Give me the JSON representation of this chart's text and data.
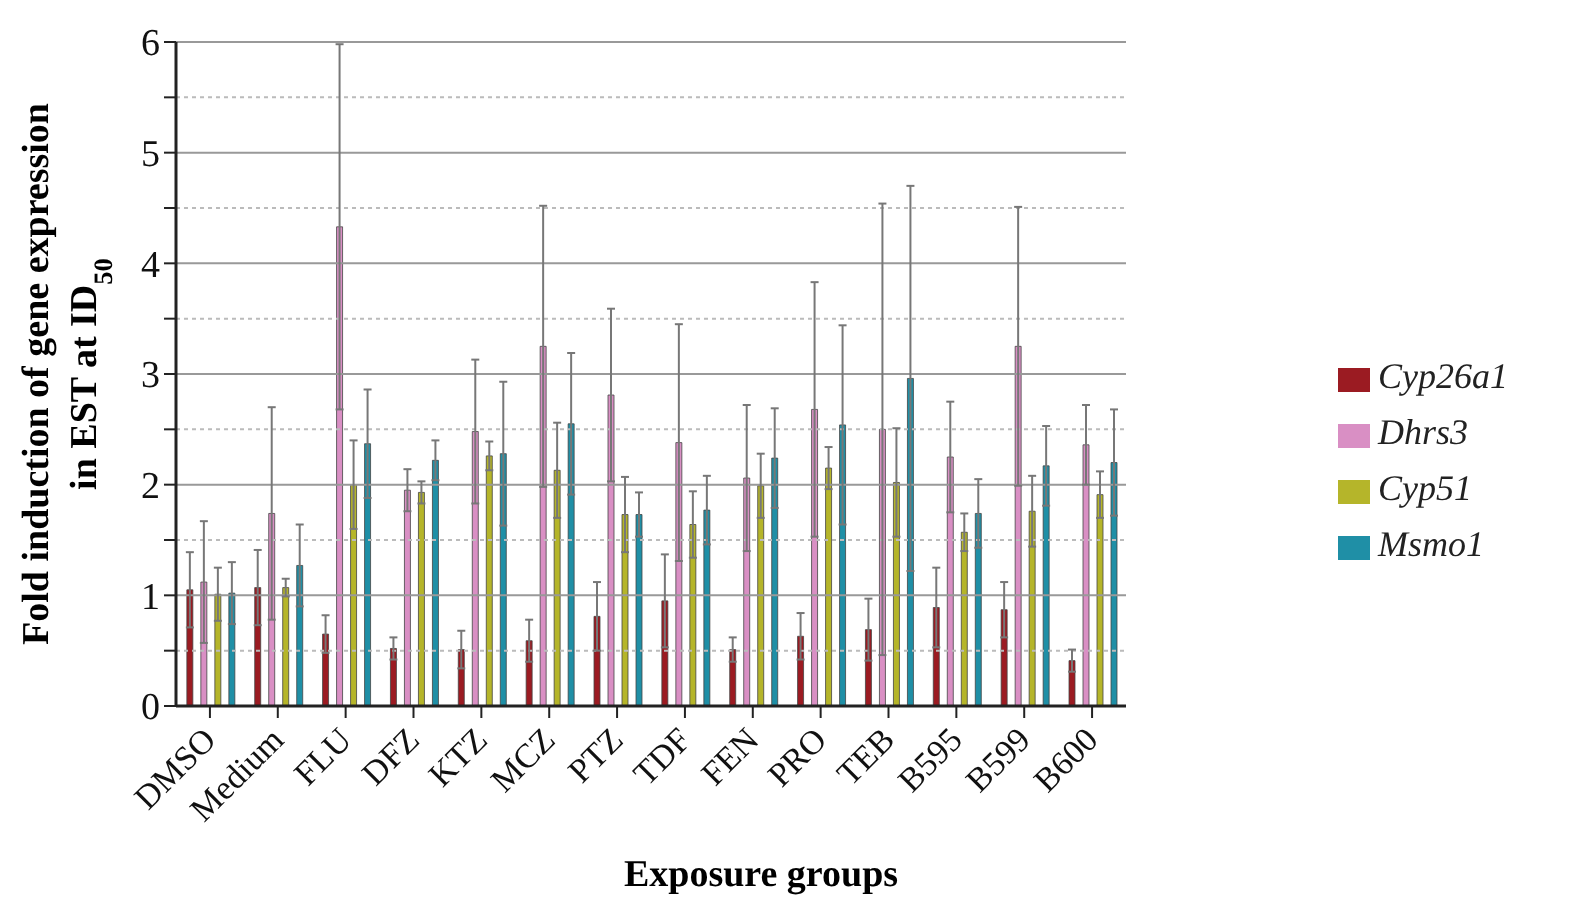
{
  "chart_data": {
    "type": "bar",
    "xlabel": "Exposure groups",
    "ylabel": "Fold induction of gene expression in EST at ID$_{50}$",
    "categories": [
      "DMSO",
      "Medium",
      "FLU",
      "DFZ",
      "KTZ",
      "MCZ",
      "PTZ",
      "TDF",
      "FEN",
      "PRO",
      "TEB",
      "B595",
      "B599",
      "B600"
    ],
    "series": [
      {
        "name": "Cyp26a1",
        "color": "#9b1b22",
        "values": [
          1.05,
          1.07,
          0.65,
          0.52,
          0.51,
          0.59,
          0.81,
          0.95,
          0.51,
          0.63,
          0.69,
          0.89,
          0.87,
          0.41
        ],
        "errors": [
          0.34,
          0.34,
          0.17,
          0.1,
          0.17,
          0.19,
          0.31,
          0.42,
          0.11,
          0.21,
          0.28,
          0.36,
          0.25,
          0.1
        ]
      },
      {
        "name": "Dhrs3",
        "color": "#d98fc4",
        "values": [
          1.12,
          1.74,
          4.33,
          1.95,
          2.48,
          3.25,
          2.81,
          2.38,
          2.06,
          2.68,
          2.5,
          2.25,
          3.25,
          2.36
        ],
        "errors": [
          0.55,
          0.96,
          1.65,
          0.19,
          0.65,
          1.27,
          0.78,
          1.07,
          0.66,
          1.15,
          2.04,
          0.5,
          1.26,
          0.36
        ]
      },
      {
        "name": "Cyp51",
        "color": "#b5b52a",
        "values": [
          1.01,
          1.07,
          2.0,
          1.93,
          2.26,
          2.13,
          1.73,
          1.64,
          1.99,
          2.15,
          2.02,
          1.57,
          1.76,
          1.91
        ],
        "errors": [
          0.24,
          0.08,
          0.4,
          0.1,
          0.13,
          0.43,
          0.34,
          0.3,
          0.29,
          0.19,
          0.49,
          0.17,
          0.32,
          0.21
        ]
      },
      {
        "name": "Msmo1",
        "color": "#1f8fa6",
        "values": [
          1.02,
          1.27,
          2.37,
          2.22,
          2.28,
          2.55,
          1.73,
          1.77,
          2.24,
          2.54,
          2.96,
          1.74,
          2.17,
          2.2
        ],
        "errors": [
          0.28,
          0.37,
          0.49,
          0.18,
          0.65,
          0.64,
          0.2,
          0.31,
          0.45,
          0.9,
          1.74,
          0.31,
          0.36,
          0.48
        ]
      }
    ],
    "ylim": [
      0,
      6
    ],
    "yticks": [
      0,
      {
        "value": 0.5,
        "label": null
      },
      1,
      {
        "value": 1.5,
        "label": null
      },
      2,
      {
        "value": 2.5,
        "label": null
      },
      3,
      {
        "value": 3.5,
        "label": null
      },
      4,
      {
        "value": 4.5,
        "label": null
      },
      5,
      {
        "value": 5.5,
        "label": null
      },
      6
    ],
    "grid": "y",
    "legend": "right"
  }
}
